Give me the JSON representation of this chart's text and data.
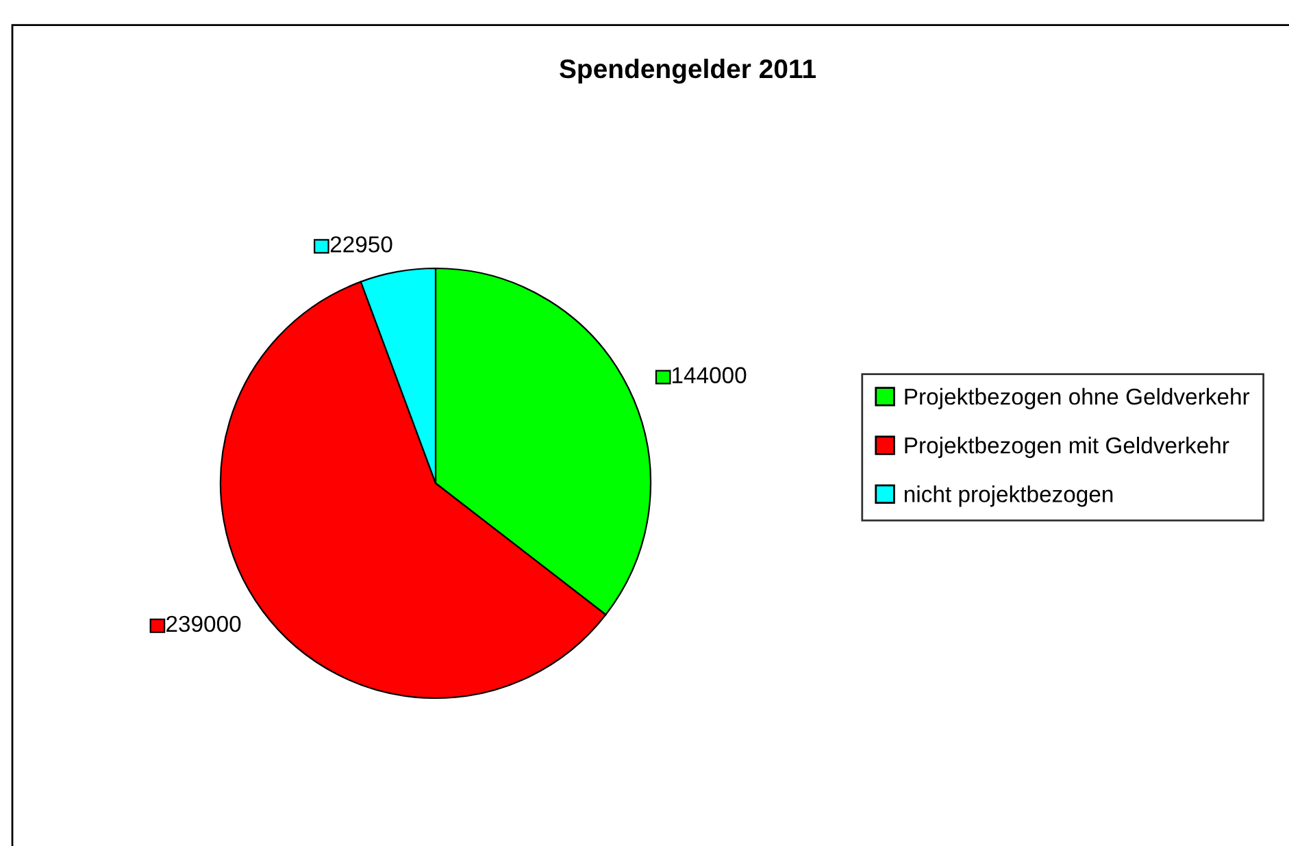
{
  "chart_data": {
    "type": "pie",
    "title": "Spendengelder 2011",
    "categories": [
      "Projektbezogen ohne Geldverkehr",
      "Projektbezogen mit Geldverkehr",
      "nicht projektbezogen"
    ],
    "values": [
      144000,
      239000,
      22950
    ],
    "colors": [
      "#00ff00",
      "#ff0000",
      "#00ffff"
    ],
    "data_labels": true,
    "legend": "right"
  }
}
